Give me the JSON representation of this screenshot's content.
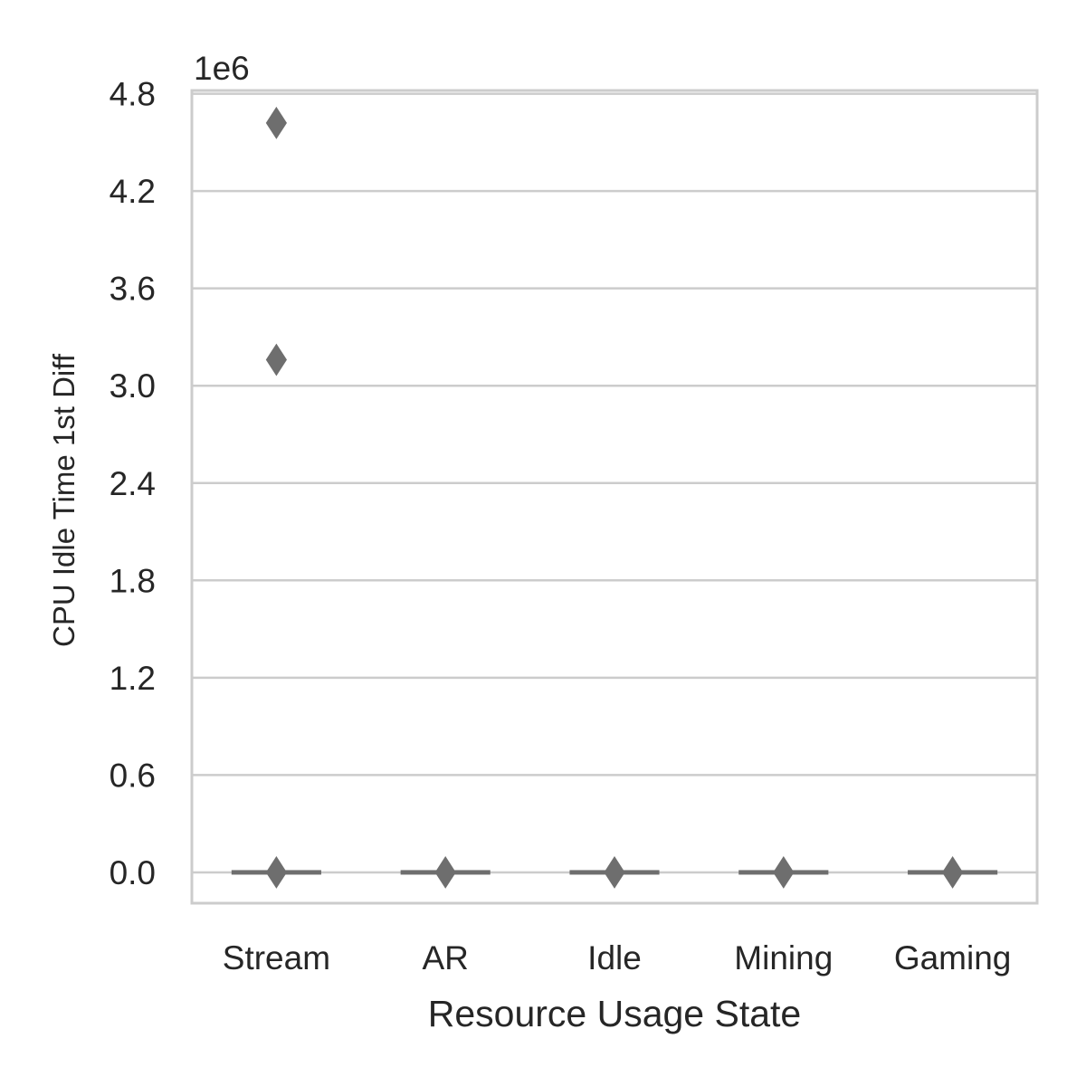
{
  "chart_data": {
    "type": "box",
    "title": "",
    "xlabel": "Resource Usage State",
    "ylabel": "CPU Idle Time 1st Diff",
    "y_offset_label": "1e6",
    "y_scale_factor": 1000000,
    "ylim": [
      -0.19,
      4.82
    ],
    "yticks": [
      0.0,
      0.6,
      1.2,
      1.8,
      2.4,
      3.0,
      3.6,
      4.2,
      4.8
    ],
    "ytick_labels": [
      "0.0",
      "0.6",
      "1.2",
      "1.8",
      "2.4",
      "3.0",
      "3.6",
      "4.2",
      "4.8"
    ],
    "grid": true,
    "categories": [
      "Stream",
      "AR",
      "Idle",
      "Mining",
      "Gaming"
    ],
    "box_color": "#6e6e6e",
    "boxes": [
      {
        "category": "Stream",
        "q1": 0.0,
        "median": 0.0,
        "q3": 0.0,
        "whisker_low": 0.0,
        "whisker_high": 0.0,
        "outliers": [
          4.62,
          3.16,
          0.0
        ]
      },
      {
        "category": "AR",
        "q1": 0.0,
        "median": 0.0,
        "q3": 0.0,
        "whisker_low": 0.0,
        "whisker_high": 0.0,
        "outliers": [
          0.0
        ]
      },
      {
        "category": "Idle",
        "q1": 0.0,
        "median": 0.0,
        "q3": 0.0,
        "whisker_low": 0.0,
        "whisker_high": 0.0,
        "outliers": [
          0.0
        ]
      },
      {
        "category": "Mining",
        "q1": 0.0,
        "median": 0.0,
        "q3": 0.0,
        "whisker_low": 0.0,
        "whisker_high": 0.0,
        "outliers": [
          0.0
        ]
      },
      {
        "category": "Gaming",
        "q1": 0.0,
        "median": 0.0,
        "q3": 0.0,
        "whisker_low": 0.0,
        "whisker_high": 0.0,
        "outliers": [
          0.0
        ]
      }
    ]
  }
}
